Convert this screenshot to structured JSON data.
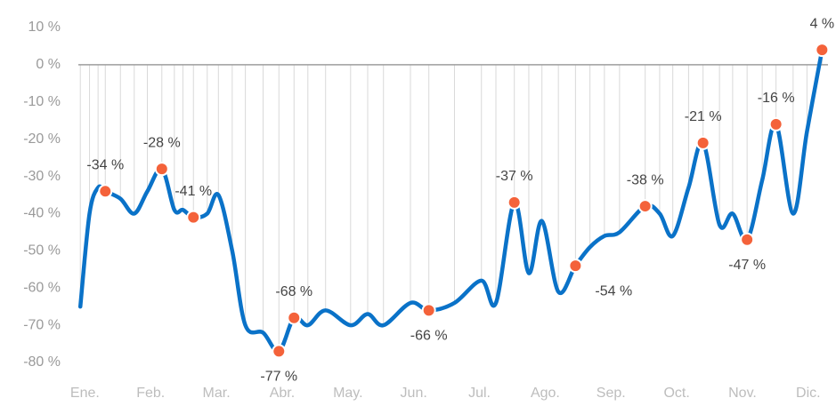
{
  "chart_data": {
    "type": "line",
    "x": [
      -0.07,
      0.07,
      0.2,
      0.31,
      0.54,
      0.75,
      0.95,
      1.17,
      1.36,
      1.49,
      1.65,
      1.86,
      2.03,
      2.24,
      2.44,
      2.71,
      2.95,
      3.18,
      3.39,
      3.66,
      4.04,
      4.3,
      4.54,
      4.95,
      5.23,
      5.62,
      6.03,
      6.25,
      6.53,
      6.75,
      6.95,
      7.2,
      7.46,
      7.68,
      7.9,
      8.13,
      8.52,
      8.74,
      8.94,
      9.18,
      9.4,
      9.65,
      9.85,
      10.07,
      10.3,
      10.51,
      10.77,
      10.98,
      11.21
    ],
    "series": [
      {
        "color": "#0a72c8",
        "values": [
          -65,
          -40,
          -33,
          -34,
          -36,
          -40,
          -34,
          -28,
          -39,
          -39,
          -41,
          -40,
          -35,
          -50,
          -70,
          -72,
          -77,
          -68,
          -70,
          -66,
          -70,
          -67,
          -70,
          -64,
          -66,
          -64,
          -58,
          -64,
          -37,
          -56,
          -42,
          -61,
          -54,
          -49,
          -46,
          -45,
          -38,
          -40,
          -46,
          -33,
          -21,
          -43,
          -40,
          -47,
          -31,
          -16,
          -40,
          -18,
          4
        ],
        "value_labels": [
          null,
          null,
          null,
          "-34 %",
          null,
          null,
          null,
          "-28 %",
          null,
          null,
          "-41 %",
          null,
          null,
          null,
          null,
          null,
          "-77 %",
          "-68 %",
          null,
          null,
          null,
          null,
          null,
          null,
          "-66 %",
          null,
          null,
          null,
          "-37 %",
          null,
          null,
          null,
          "-54 %",
          null,
          null,
          null,
          "-38 %",
          null,
          null,
          null,
          "-21 %",
          null,
          null,
          "-47 %",
          null,
          "-16 %",
          null,
          null,
          "4 %"
        ]
      }
    ],
    "xlim": [
      -0.1,
      11.3
    ],
    "xticks": [
      {
        "value": 0,
        "label": "Ene."
      },
      {
        "value": 1,
        "label": "Feb."
      },
      {
        "value": 2,
        "label": "Mar."
      },
      {
        "value": 3,
        "label": "Abr."
      },
      {
        "value": 4,
        "label": "May."
      },
      {
        "value": 5,
        "label": "Jun."
      },
      {
        "value": 6,
        "label": "Jul."
      },
      {
        "value": 7,
        "label": "Ago."
      },
      {
        "value": 8,
        "label": "Sep."
      },
      {
        "value": 9,
        "label": "Oct."
      },
      {
        "value": 10,
        "label": "Nov."
      },
      {
        "value": 11,
        "label": "Dic."
      }
    ],
    "ylim": [
      -80,
      10
    ],
    "yticks": [
      {
        "value": 10,
        "label": "10 %"
      },
      {
        "value": 0,
        "label": "0 %"
      },
      {
        "value": -10,
        "label": "-10 %"
      },
      {
        "value": -20,
        "label": "-20 %"
      },
      {
        "value": -30,
        "label": "-30 %"
      },
      {
        "value": -40,
        "label": "-40 %"
      },
      {
        "value": -50,
        "label": "-50 %"
      },
      {
        "value": -60,
        "label": "-60 %"
      },
      {
        "value": -70,
        "label": "-70 %"
      },
      {
        "value": -80,
        "label": "-80 %"
      }
    ],
    "marker_color": "#f4623a"
  }
}
